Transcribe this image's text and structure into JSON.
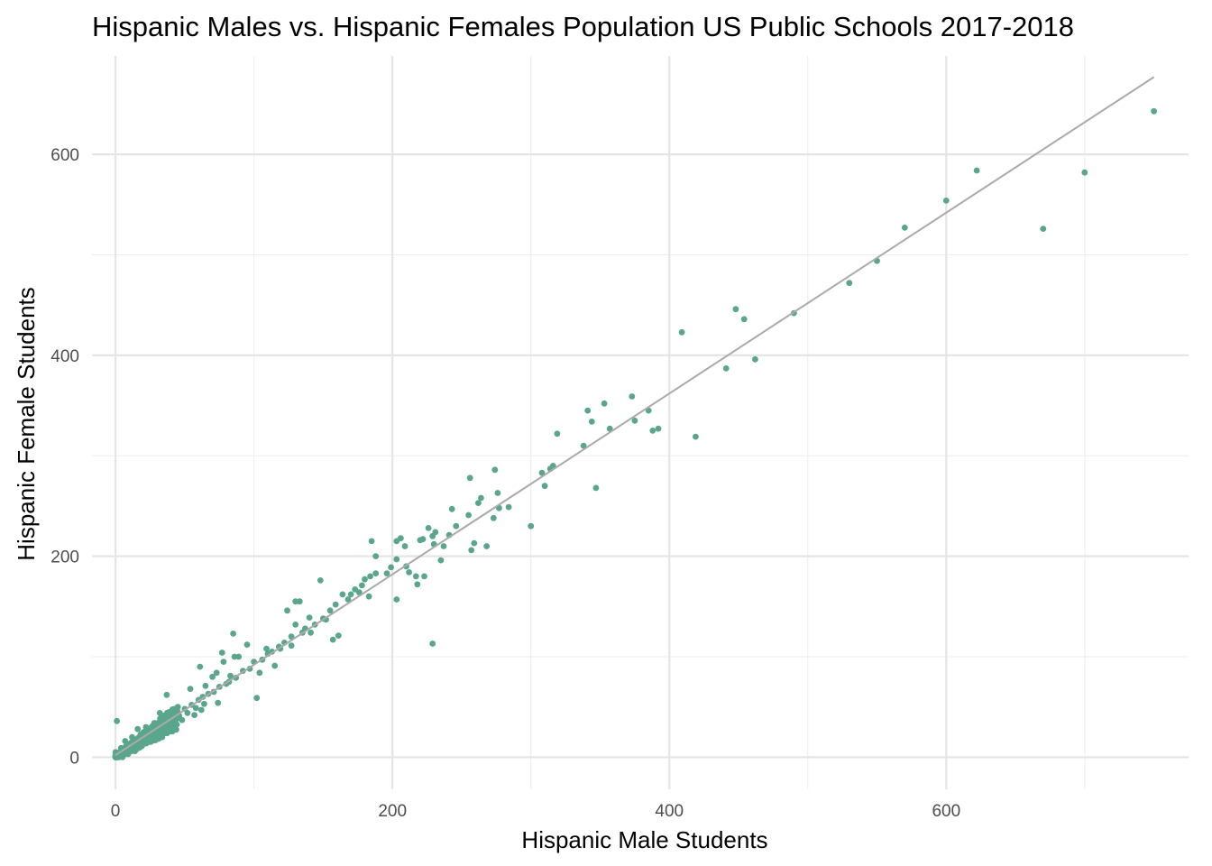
{
  "chart_data": {
    "type": "scatter",
    "title": "Hispanic Males vs. Hispanic Females Population US Public Schools 2017-2018",
    "xlabel": "Hispanic Male Students",
    "ylabel": "Hispanic Female Students",
    "xlim": [
      -17,
      775
    ],
    "ylim": [
      -32,
      698
    ],
    "x_ticks": [
      0,
      200,
      400,
      600
    ],
    "y_ticks": [
      0,
      200,
      400,
      600
    ],
    "x_tick_labels": [
      "0",
      "200",
      "400",
      "600"
    ],
    "y_tick_labels": [
      "0",
      "200",
      "400",
      "600"
    ],
    "grid": true,
    "point_color": "#5aa68c",
    "fit_line_color": "#aaaaaa",
    "fit_line": {
      "x": [
        0,
        750
      ],
      "y": [
        2,
        677
      ]
    },
    "points": [
      [
        750,
        643
      ],
      [
        622,
        584
      ],
      [
        700,
        582
      ],
      [
        600,
        554
      ],
      [
        670,
        526
      ],
      [
        570,
        527
      ],
      [
        550,
        494
      ],
      [
        530,
        472
      ],
      [
        490,
        442
      ],
      [
        448,
        446
      ],
      [
        454,
        436
      ],
      [
        409,
        423
      ],
      [
        441,
        387
      ],
      [
        462,
        396
      ],
      [
        419,
        319
      ],
      [
        385,
        345
      ],
      [
        388,
        325
      ],
      [
        392,
        327
      ],
      [
        373,
        359
      ],
      [
        375,
        335
      ],
      [
        357,
        327
      ],
      [
        353,
        352
      ],
      [
        341,
        345
      ],
      [
        344,
        334
      ],
      [
        338,
        310
      ],
      [
        347,
        268
      ],
      [
        319,
        322
      ],
      [
        316,
        290
      ],
      [
        314,
        287
      ],
      [
        308,
        283
      ],
      [
        310,
        270
      ],
      [
        300,
        230
      ],
      [
        274,
        286
      ],
      [
        276,
        263
      ],
      [
        277,
        248
      ],
      [
        284,
        249
      ],
      [
        264,
        258
      ],
      [
        262,
        253
      ],
      [
        255,
        241
      ],
      [
        259,
        213
      ],
      [
        257,
        206
      ],
      [
        268,
        210
      ],
      [
        273,
        238
      ],
      [
        243,
        247
      ],
      [
        256,
        278
      ],
      [
        246,
        230
      ],
      [
        235,
        196
      ],
      [
        230,
        212
      ],
      [
        226,
        228
      ],
      [
        231,
        224
      ],
      [
        222,
        217
      ],
      [
        229,
        220
      ],
      [
        241,
        221
      ],
      [
        220,
        216
      ],
      [
        203,
        215
      ],
      [
        206,
        218
      ],
      [
        209,
        210
      ],
      [
        203,
        197
      ],
      [
        210,
        190
      ],
      [
        212,
        184
      ],
      [
        217,
        180
      ],
      [
        223,
        180
      ],
      [
        218,
        172
      ],
      [
        203,
        157
      ],
      [
        229,
        113
      ],
      [
        185,
        215
      ],
      [
        188,
        200
      ],
      [
        188,
        183
      ],
      [
        184,
        180
      ],
      [
        180,
        177
      ],
      [
        178,
        171
      ],
      [
        183,
        160
      ],
      [
        173,
        167
      ],
      [
        170,
        162
      ],
      [
        164,
        162
      ],
      [
        159,
        152
      ],
      [
        161,
        121
      ],
      [
        157,
        117
      ],
      [
        148,
        176
      ],
      [
        150,
        138
      ],
      [
        144,
        132
      ],
      [
        141,
        124
      ],
      [
        133,
        155
      ],
      [
        130,
        155
      ],
      [
        124,
        146
      ],
      [
        130,
        132
      ],
      [
        135,
        124
      ],
      [
        127,
        111
      ],
      [
        119,
        108
      ],
      [
        115,
        91
      ],
      [
        109,
        108
      ],
      [
        110,
        103
      ],
      [
        106,
        97
      ],
      [
        104,
        84
      ],
      [
        102,
        59
      ],
      [
        95,
        112
      ],
      [
        89,
        100
      ],
      [
        85,
        123
      ],
      [
        86,
        100
      ],
      [
        82,
        75
      ],
      [
        77,
        104
      ],
      [
        78,
        95
      ],
      [
        73,
        84
      ],
      [
        70,
        80
      ],
      [
        65,
        71
      ],
      [
        61,
        90
      ],
      [
        63,
        60
      ],
      [
        74,
        54
      ],
      [
        62,
        47
      ],
      [
        57,
        42
      ],
      [
        54,
        68
      ],
      [
        50,
        48
      ],
      [
        45,
        50
      ],
      [
        42,
        45
      ],
      [
        40,
        38
      ],
      [
        37,
        62
      ],
      [
        35,
        32
      ],
      [
        32,
        44
      ],
      [
        30,
        28
      ],
      [
        28,
        34
      ],
      [
        25,
        25
      ],
      [
        22,
        30
      ],
      [
        20,
        18
      ],
      [
        18,
        22
      ],
      [
        15,
        15
      ],
      [
        12,
        20
      ],
      [
        10,
        8
      ],
      [
        8,
        12
      ],
      [
        6,
        5
      ],
      [
        4,
        9
      ],
      [
        2,
        3
      ],
      [
        1,
        36
      ],
      [
        0,
        5
      ],
      [
        3,
        2
      ],
      [
        5,
        0
      ],
      [
        7,
        16
      ],
      [
        9,
        3
      ],
      [
        11,
        10
      ],
      [
        14,
        6
      ],
      [
        16,
        28
      ],
      [
        19,
        11
      ],
      [
        21,
        14
      ],
      [
        24,
        19
      ],
      [
        27,
        17
      ],
      [
        29,
        22
      ],
      [
        31,
        21
      ],
      [
        34,
        27
      ],
      [
        36,
        35
      ],
      [
        39,
        33
      ],
      [
        41,
        29
      ],
      [
        44,
        38
      ],
      [
        46,
        41
      ],
      [
        48,
        37
      ],
      [
        52,
        44
      ],
      [
        55,
        52
      ],
      [
        58,
        49
      ],
      [
        60,
        57
      ],
      [
        64,
        53
      ],
      [
        67,
        63
      ],
      [
        71,
        65
      ],
      [
        75,
        70
      ],
      [
        80,
        73
      ],
      [
        83,
        81
      ],
      [
        87,
        79
      ],
      [
        92,
        86
      ],
      [
        97,
        88
      ],
      [
        100,
        95
      ],
      [
        113,
        105
      ],
      [
        118,
        110
      ],
      [
        122,
        114
      ],
      [
        127,
        120
      ],
      [
        137,
        128
      ],
      [
        140,
        139
      ],
      [
        152,
        137
      ],
      [
        155,
        146
      ],
      [
        168,
        157
      ],
      [
        176,
        164
      ],
      [
        196,
        183
      ],
      [
        199,
        189
      ],
      [
        237,
        210
      ]
    ]
  }
}
